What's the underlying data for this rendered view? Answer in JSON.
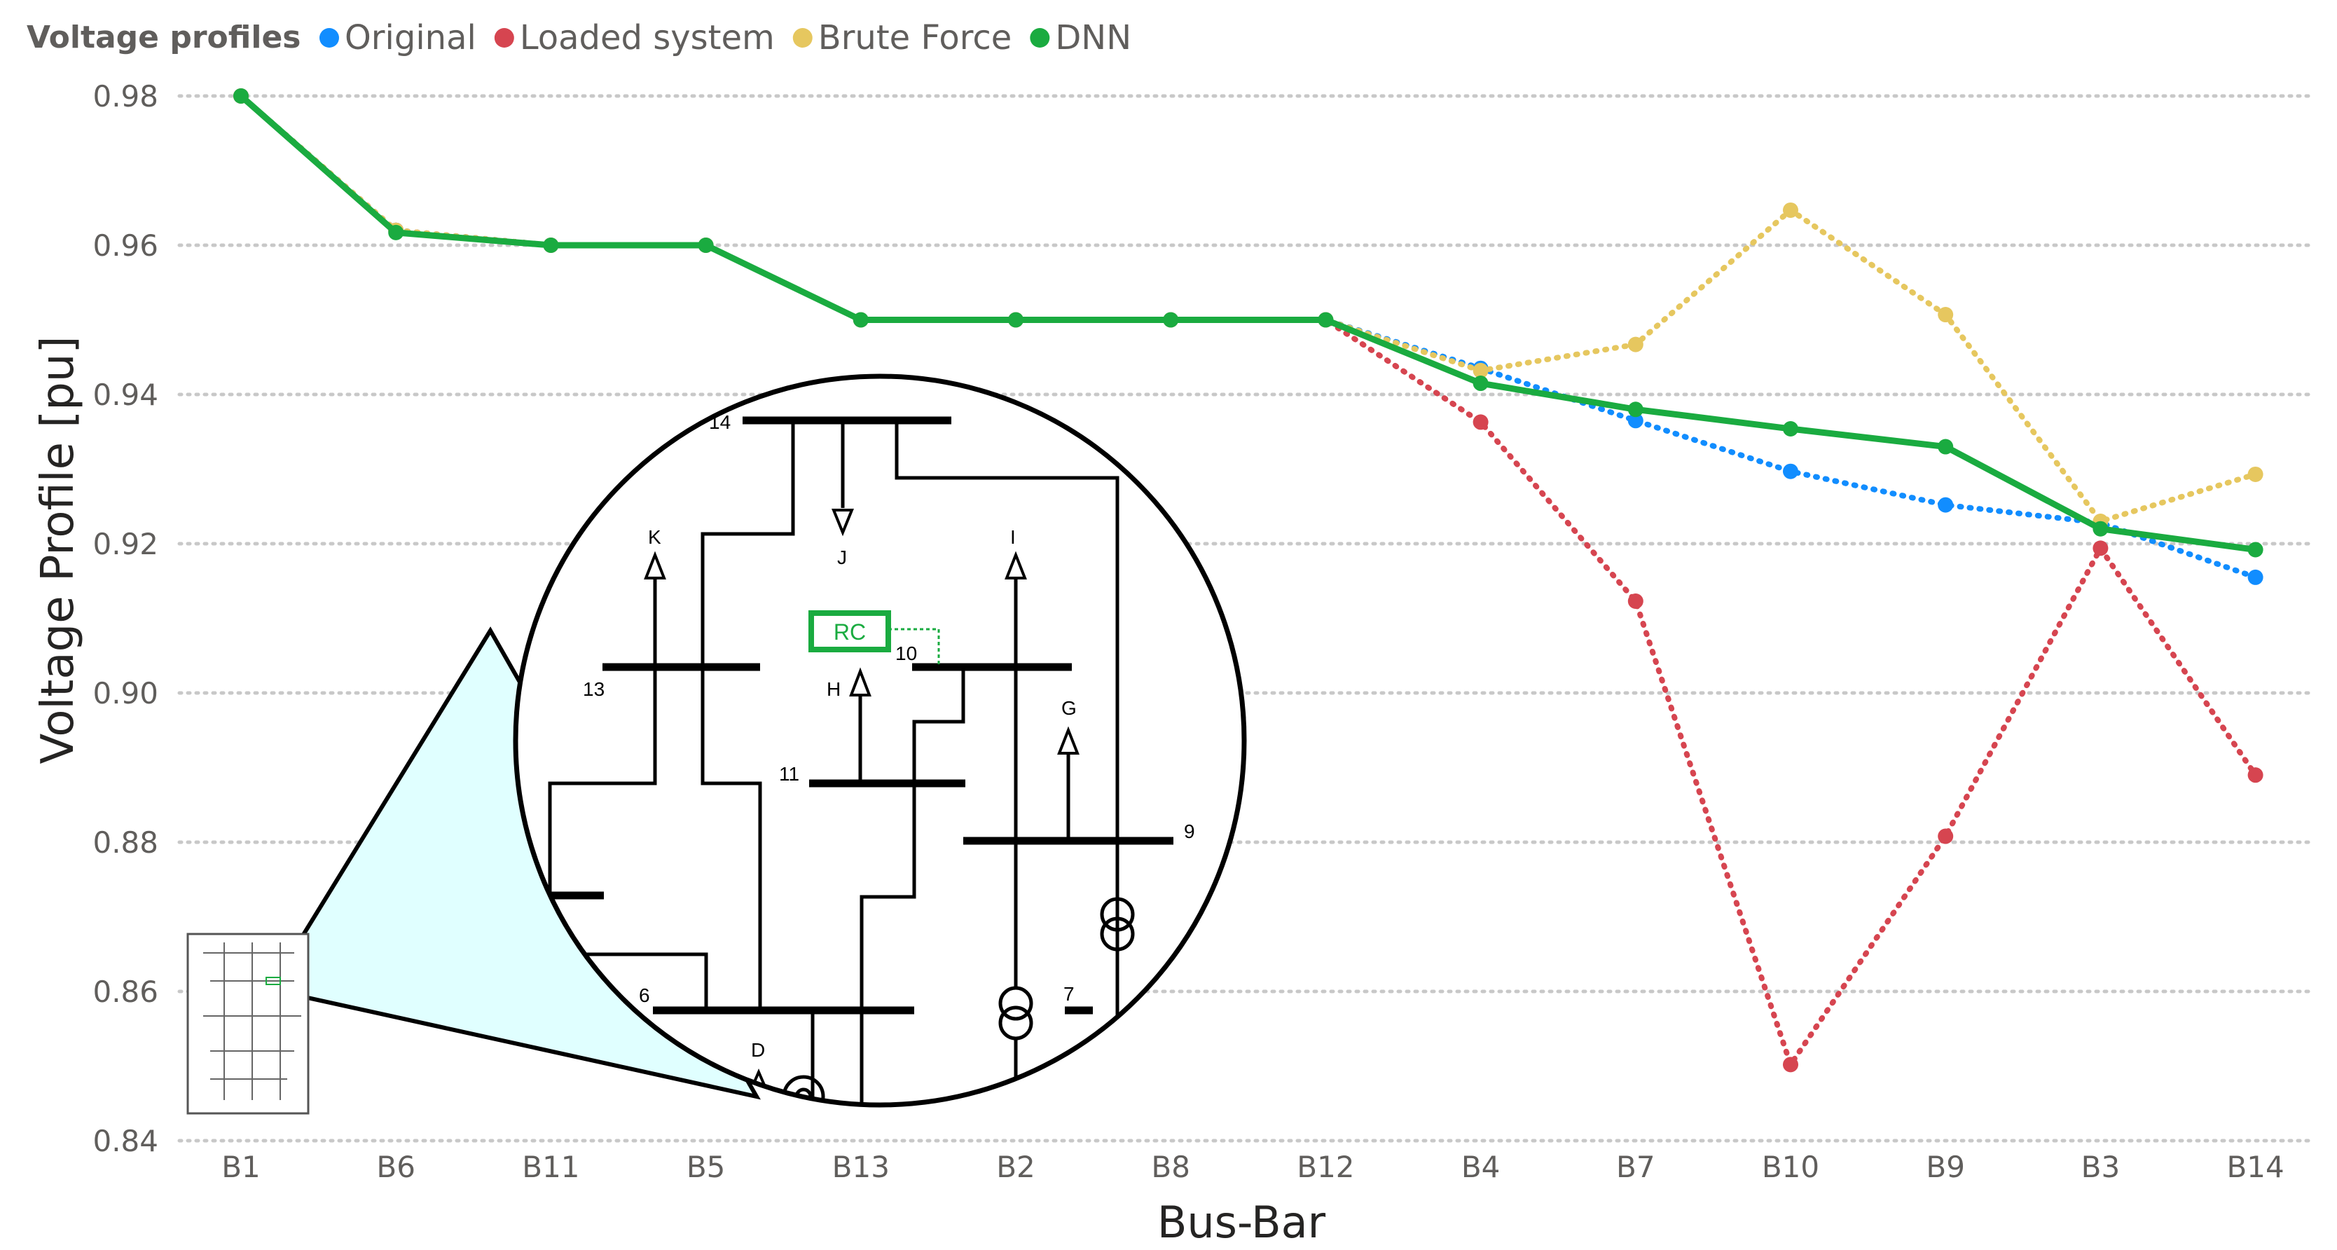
{
  "chart_data": {
    "type": "line",
    "legend_title": "Voltage profiles",
    "legend_position": "top-left",
    "xlabel": "Bus-Bar",
    "ylabel": "Voltage Profile [pu]",
    "ylim": [
      0.84,
      0.98
    ],
    "yticks": [
      "0.98",
      "0.96",
      "0.94",
      "0.92",
      "0.90",
      "0.88",
      "0.86",
      "0.84"
    ],
    "grid": true,
    "categories": [
      "B1",
      "B6",
      "B11",
      "B5",
      "B13",
      "B2",
      "B8",
      "B12",
      "B4",
      "B7",
      "B10",
      "B9",
      "B3",
      "B14"
    ],
    "series": [
      {
        "name": "Original",
        "color": "#118dff",
        "style": "dotted",
        "values": [
          0.98,
          0.962,
          0.96,
          0.96,
          0.95,
          0.95,
          0.95,
          0.95,
          0.9435,
          0.9365,
          0.9297,
          0.9252,
          0.9228,
          0.9155
        ]
      },
      {
        "name": "Loaded system",
        "color": "#d64550",
        "style": "dotted",
        "values": [
          0.98,
          0.962,
          0.96,
          0.96,
          0.95,
          0.95,
          0.95,
          0.95,
          0.9363,
          0.9123,
          0.8502,
          0.8808,
          0.9194,
          0.889
        ]
      },
      {
        "name": "Brute Force",
        "color": "#e6c75f",
        "style": "dotted",
        "values": [
          0.98,
          0.962,
          0.96,
          0.96,
          0.95,
          0.95,
          0.95,
          0.95,
          0.9432,
          0.9467,
          0.9647,
          0.9507,
          0.923,
          0.9293
        ]
      },
      {
        "name": "DNN",
        "color": "#1aab40",
        "style": "solid",
        "values": [
          0.98,
          0.9617,
          0.96,
          0.96,
          0.95,
          0.95,
          0.95,
          0.95,
          0.9415,
          0.938,
          0.9354,
          0.933,
          0.922,
          0.9192
        ]
      }
    ]
  },
  "inset": {
    "bus_labels": [
      "14",
      "13",
      "10",
      "11",
      "9",
      "6",
      "7"
    ],
    "load_labels": [
      "K",
      "J",
      "I",
      "H",
      "G",
      "D"
    ],
    "controller_label": "RC"
  }
}
